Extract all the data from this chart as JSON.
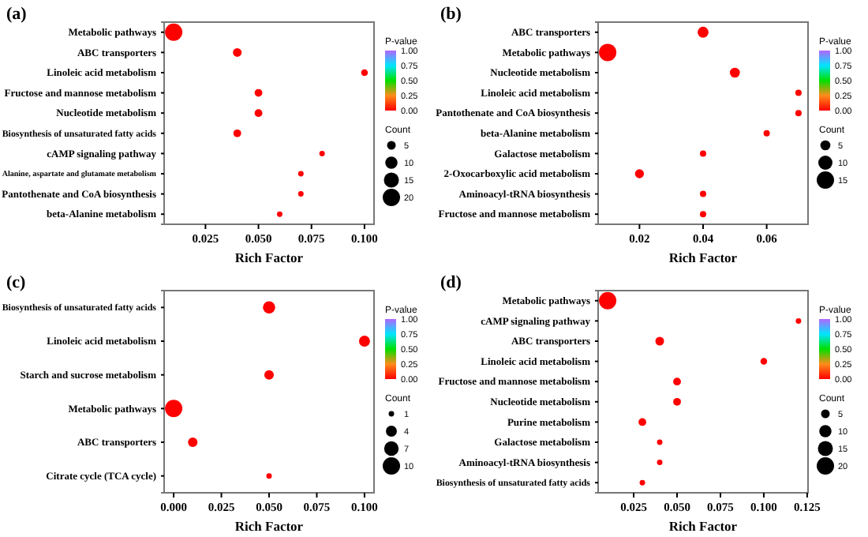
{
  "chart_data": [
    {
      "type": "bubble",
      "orientation": "horizontal",
      "title": "(a)",
      "xlabel": "Rich Factor",
      "clabel": "P-value",
      "legend_title": "Count",
      "categories": [
        "Metabolic pathways",
        "ABC transporters",
        "Linoleic acid metabolism",
        "Fructose and mannose metabolism",
        "Nucleotide metabolism",
        "Biosynthesis of unsaturated fatty acids",
        "cAMP signaling pathway",
        "Alanine, aspartate and glutamate metabolism",
        "Pantothenate and CoA biosynthesis",
        "beta-Alanine metabolism"
      ],
      "values": [
        0.01,
        0.04,
        0.1,
        0.05,
        0.05,
        0.04,
        0.08,
        0.07,
        0.07,
        0.06
      ],
      "sizes": [
        20,
        5,
        3,
        4,
        4,
        4,
        2,
        2,
        2,
        2
      ],
      "cvalues": [
        0,
        0,
        0,
        0,
        0,
        0,
        0,
        0,
        0,
        0
      ],
      "clim": [
        0,
        1
      ],
      "cticks": [
        {
          "value": 0,
          "label": "0.00"
        },
        {
          "value": 0.25,
          "label": "0.25"
        },
        {
          "value": 0.5,
          "label": "0.50"
        },
        {
          "value": 0.75,
          "label": "0.75"
        },
        {
          "value": 1,
          "label": "1.00"
        }
      ],
      "size_legend": [
        5,
        10,
        15,
        20
      ],
      "xlim": [
        0.0055,
        0.1045
      ],
      "xticks": [
        0.025,
        {
          "value": 0.05,
          "label": "0.050"
        },
        0.075,
        {
          "value": 0.1,
          "label": "0.100"
        }
      ]
    },
    {
      "type": "bubble",
      "orientation": "horizontal",
      "title": "(b)",
      "xlabel": "Rich Factor",
      "clabel": "P-value",
      "legend_title": "Count",
      "categories": [
        "ABC transporters",
        "Metabolic pathways",
        "Nucleotide metabolism",
        "Linoleic acid metabolism",
        "Pantothenate and CoA biosynthesis",
        "beta-Alanine metabolism",
        "Galactose metabolism",
        "2-Oxocarboxylic acid metabolism",
        "Aminoacyl-tRNA biosynthesis",
        "Fructose and mannose metabolism"
      ],
      "values": [
        0.04,
        0.01,
        0.05,
        0.07,
        0.07,
        0.06,
        0.04,
        0.02,
        0.04,
        0.04
      ],
      "sizes": [
        6,
        15,
        5,
        2,
        2,
        2,
        2,
        4,
        2,
        2
      ],
      "cvalues": [
        0,
        0,
        0,
        0,
        0,
        0,
        0,
        0,
        0,
        0
      ],
      "clim": [
        0,
        1
      ],
      "cticks": [
        {
          "value": 0,
          "label": "0.00"
        },
        {
          "value": 0.25,
          "label": "0.25"
        },
        {
          "value": 0.5,
          "label": "0.50"
        },
        {
          "value": 0.75,
          "label": "0.75"
        },
        {
          "value": 1,
          "label": "1.00"
        }
      ],
      "size_legend": [
        5,
        10,
        15
      ],
      "xlim": [
        0.007,
        0.073
      ],
      "xticks": [
        0.02,
        0.04,
        0.06
      ]
    },
    {
      "type": "bubble",
      "orientation": "horizontal",
      "title": "(c)",
      "xlabel": "Rich Factor",
      "clabel": "P-value",
      "legend_title": "Count",
      "categories": [
        "Biosynthesis of unsaturated fatty acids",
        "Linoleic acid metabolism",
        "Starch and sucrose metabolism",
        "Metabolic pathways",
        "ABC transporters",
        "Citrate cycle (TCA cycle)"
      ],
      "values": [
        0.05,
        0.1,
        0.05,
        0,
        0.01,
        0.05
      ],
      "sizes": [
        5,
        4,
        3,
        10,
        3,
        1
      ],
      "cvalues": [
        0,
        0,
        0,
        0,
        0,
        0
      ],
      "clim": [
        0,
        1
      ],
      "cticks": [
        {
          "value": 0,
          "label": "0.00"
        },
        {
          "value": 0.25,
          "label": "0.25"
        },
        {
          "value": 0.5,
          "label": "0.50"
        },
        {
          "value": 0.75,
          "label": "0.75"
        },
        {
          "value": 1,
          "label": "1.00"
        }
      ],
      "size_legend": [
        1,
        4,
        7,
        10
      ],
      "xlim": [
        -0.005,
        0.105
      ],
      "xticks": [
        {
          "value": 0,
          "label": "0.000"
        },
        0.025,
        {
          "value": 0.05,
          "label": "0.050"
        },
        0.075,
        {
          "value": 0.1,
          "label": "0.100"
        }
      ]
    },
    {
      "type": "bubble",
      "orientation": "horizontal",
      "title": "(d)",
      "xlabel": "Rich Factor",
      "clabel": "P-value",
      "legend_title": "Count",
      "categories": [
        "Metabolic pathways",
        "cAMP signaling pathway",
        "ABC transporters",
        "Linoleic acid metabolism",
        "Fructose and mannose metabolism",
        "Nucleotide metabolism",
        "Purine metabolism",
        "Galactose metabolism",
        "Aminoacyl-tRNA biosynthesis",
        "Biosynthesis of unsaturated fatty acids"
      ],
      "values": [
        0.01,
        0.12,
        0.04,
        0.1,
        0.05,
        0.05,
        0.03,
        0.04,
        0.04,
        0.03
      ],
      "sizes": [
        20,
        2,
        5,
        3,
        4,
        4,
        4,
        2,
        2,
        2
      ],
      "cvalues": [
        0,
        0,
        0,
        0,
        0,
        0,
        0,
        0,
        0,
        0
      ],
      "clim": [
        0,
        1
      ],
      "cticks": [
        {
          "value": 0,
          "label": "0.00"
        },
        {
          "value": 0.25,
          "label": "0.25"
        },
        {
          "value": 0.5,
          "label": "0.50"
        },
        {
          "value": 0.75,
          "label": "0.75"
        },
        {
          "value": 1,
          "label": "1.00"
        }
      ],
      "size_legend": [
        5,
        10,
        15,
        20
      ],
      "xlim": [
        0.0045,
        0.1255
      ],
      "xticks": [
        0.025,
        {
          "value": 0.05,
          "label": "0.050"
        },
        0.075,
        {
          "value": 0.1,
          "label": "0.100"
        },
        0.125
      ]
    }
  ]
}
